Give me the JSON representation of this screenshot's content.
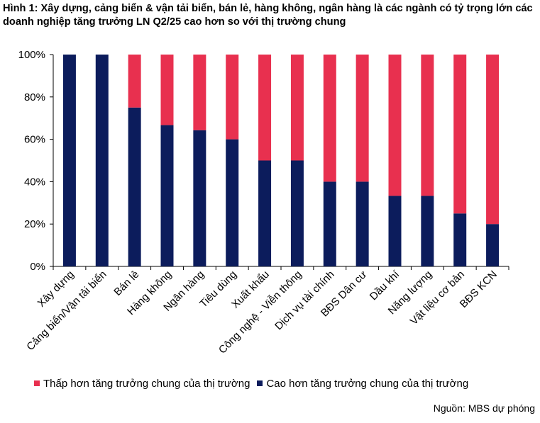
{
  "title": "Hình 1: Xây dựng, cảng biển & vận tải biển, bán lẻ, hàng không, ngân hàng là các ngành có tỷ trọng lớn các doanh nghiệp tăng trưởng LN Q2/25 cao hơn so với thị trường chung",
  "source": "Nguồn: MBS dự phóng",
  "colors": {
    "lower": "#E8304F",
    "higher": "#0C1C5C"
  },
  "chart_data": {
    "type": "bar",
    "stacked": true,
    "categories": [
      "Xây dựng",
      "Cảng biển/Vận tải biển",
      "Bán lẻ",
      "Hàng không",
      "Ngân hàng",
      "Tiêu dùng",
      "Xuất khẩu",
      "Công nghệ - Viễn thông",
      "Dịch vụ tài chính",
      "BĐS Dân cư",
      "Dầu khí",
      "Năng lượng",
      "Vật liệu cơ bản",
      "BĐS KCN"
    ],
    "series": [
      {
        "name": "Cao hơn tăng trưởng chung của thị trường",
        "values": [
          100,
          100,
          75,
          66.7,
          64.3,
          60,
          50,
          50,
          40,
          40,
          33.3,
          33.3,
          25,
          20
        ]
      },
      {
        "name": "Thấp  hơn tăng trưởng chung của thị trường",
        "values": [
          0,
          0,
          25,
          33.3,
          35.7,
          40,
          50,
          50,
          60,
          60,
          66.7,
          66.7,
          75,
          80
        ]
      }
    ],
    "ylim": [
      0,
      100
    ],
    "yticks": [
      "0%",
      "20%",
      "40%",
      "60%",
      "80%",
      "100%"
    ],
    "xlabel": "",
    "ylabel": "",
    "grid": false,
    "legend_position": "bottom"
  }
}
